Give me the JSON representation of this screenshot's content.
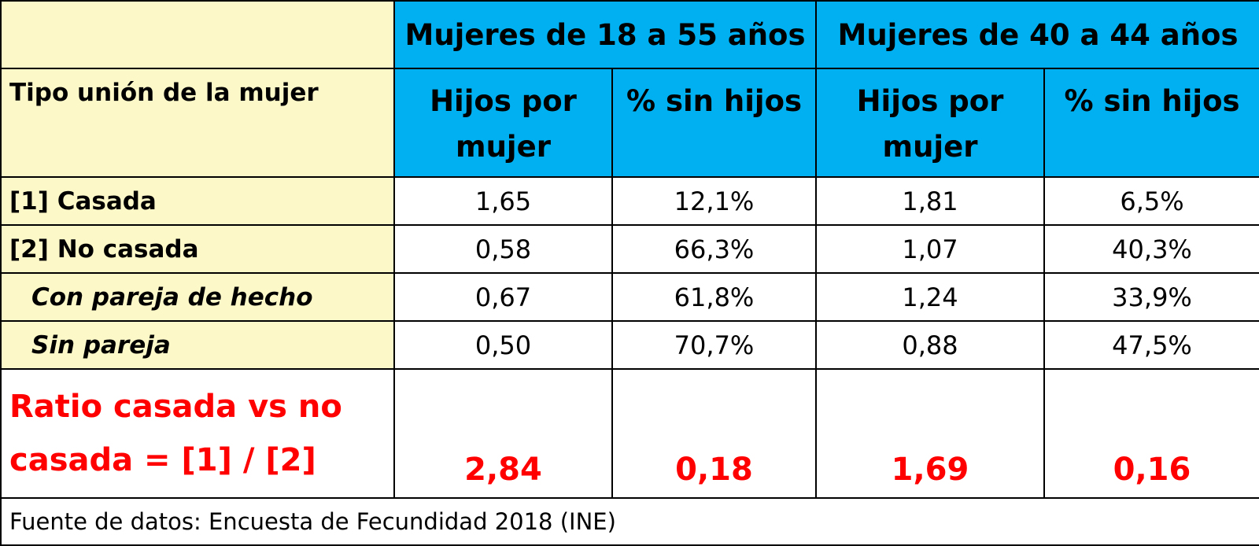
{
  "header": {
    "group_a": "Mujeres de 18 a 55 años",
    "group_b": "Mujeres de 40 a 44 años",
    "label_column": "Tipo unión de la mujer",
    "hijos_line1": "Hijos por",
    "hijos_line2": "mujer",
    "sin_hijos": "% sin hijos"
  },
  "rows": [
    {
      "label": "[1] Casada",
      "values": [
        "1,65",
        "12,1%",
        "1,81",
        "6,5%"
      ]
    },
    {
      "label": "[2] No casada",
      "values": [
        "0,58",
        "66,3%",
        "1,07",
        "40,3%"
      ]
    },
    {
      "label": "Con pareja de hecho",
      "values": [
        "0,67",
        "61,8%",
        "1,24",
        "33,9%"
      ]
    },
    {
      "label": "Sin pareja",
      "values": [
        "0,50",
        "70,7%",
        "0,88",
        "47,5%"
      ]
    }
  ],
  "ratio": {
    "label_line1": "Ratio casada vs no",
    "label_line2": "casada = [1] / [2]",
    "values": [
      "2,84",
      "0,18",
      "1,69",
      "0,16"
    ]
  },
  "source": "Fuente de datos: Encuesta de Fecundidad 2018 (INE)",
  "colors": {
    "header_blue": "#00b0f0",
    "label_yellow": "#fdf8c8",
    "ratio_red": "#ff0000"
  }
}
